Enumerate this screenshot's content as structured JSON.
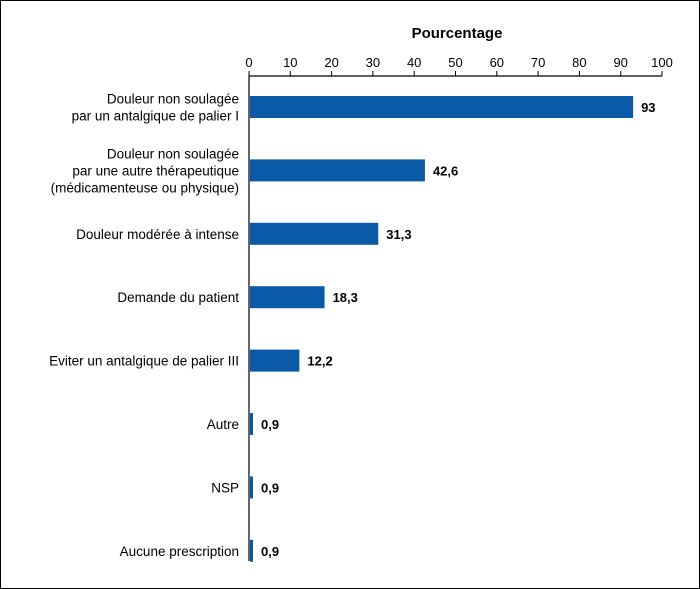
{
  "chart_data": {
    "type": "bar",
    "orientation": "horizontal",
    "title": "",
    "xlabel": "Pourcentage",
    "ylabel": "",
    "xlim": [
      0,
      100
    ],
    "ticks": [
      "0",
      "10",
      "20",
      "30",
      "40",
      "50",
      "60",
      "70",
      "80",
      "90",
      "100"
    ],
    "categories": [
      [
        "Douleur non soulagée",
        "par un antalgique de palier I"
      ],
      [
        "Douleur non soulagée",
        "par une autre thérapeutique",
        "(médicamenteuse ou physique)"
      ],
      [
        "Douleur modérée à intense"
      ],
      [
        "Demande du patient"
      ],
      [
        "Eviter un antalgique de palier III"
      ],
      [
        "Autre"
      ],
      [
        "NSP"
      ],
      [
        "Aucune prescription"
      ]
    ],
    "values": [
      93,
      42.6,
      31.3,
      18.3,
      12.2,
      0.9,
      0.9,
      0.9
    ],
    "value_labels": [
      "93",
      "42,6",
      "31,3",
      "18,3",
      "12,2",
      "0,9",
      "0,9",
      "0,9"
    ],
    "bar_color": "#0a5aa8",
    "axis_position": "top",
    "grid": false,
    "legend": "none"
  }
}
